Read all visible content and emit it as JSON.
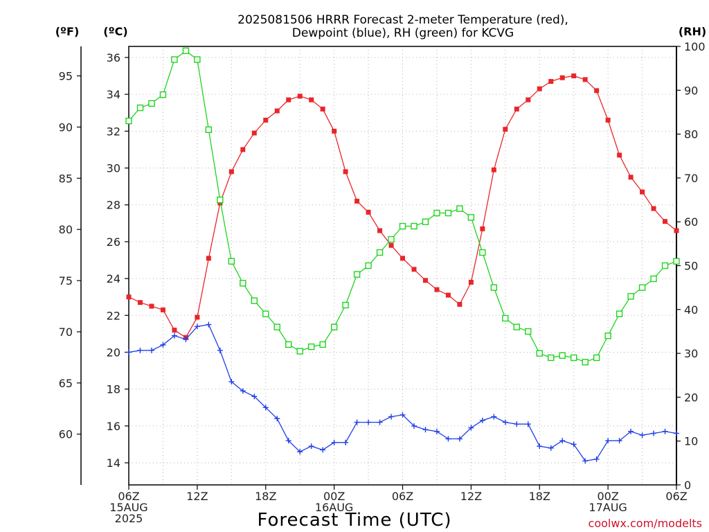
{
  "title_line1": "2025081506 HRRR Forecast 2-meter Temperature (red),",
  "title_line2": "Dewpoint (blue), RH (green) for KCVG",
  "unit_labels": {
    "f": "(ºF)",
    "c": "(ºC)",
    "rh": "(RH)"
  },
  "xlabel": "Forecast Time (UTC)",
  "credit": "coolwx.com/modelts",
  "colors": {
    "temperature": "#e8262a",
    "dewpoint": "#1f3fe6",
    "rh": "#1ed41e",
    "grid": "#b0b0b0"
  },
  "chart_data": {
    "type": "line",
    "x_unit": "forecast hour from 2025-08-15 06Z",
    "x_ticks": [
      {
        "x": 0,
        "lines": [
          "06Z",
          "15AUG",
          "2025"
        ]
      },
      {
        "x": 6,
        "lines": [
          "12Z"
        ]
      },
      {
        "x": 12,
        "lines": [
          "18Z"
        ]
      },
      {
        "x": 18,
        "lines": [
          "00Z",
          "16AUG"
        ]
      },
      {
        "x": 24,
        "lines": [
          "06Z"
        ]
      },
      {
        "x": 30,
        "lines": [
          "12Z"
        ]
      },
      {
        "x": 36,
        "lines": [
          "18Z"
        ]
      },
      {
        "x": 42,
        "lines": [
          "00Z",
          "17AUG"
        ]
      },
      {
        "x": 48,
        "lines": [
          "06Z"
        ]
      }
    ],
    "xlim": [
      0,
      48
    ],
    "y_left_c": {
      "ylim": [
        12.8,
        36.6
      ],
      "ticks": [
        14,
        16,
        18,
        20,
        22,
        24,
        26,
        28,
        30,
        32,
        34,
        36
      ]
    },
    "y_left_f": {
      "ticks": [
        60,
        65,
        70,
        75,
        80,
        85,
        90,
        95
      ]
    },
    "y_right_rh": {
      "ylim": [
        0,
        100
      ],
      "ticks": [
        0,
        10,
        20,
        30,
        40,
        50,
        60,
        70,
        80,
        90,
        100
      ]
    },
    "grid": true,
    "series": [
      {
        "key": "temperature",
        "axis": "c",
        "marker": "filled-square",
        "values": [
          23.0,
          22.7,
          22.5,
          22.3,
          21.2,
          20.8,
          21.9,
          25.1,
          28.1,
          29.8,
          31.0,
          31.9,
          32.6,
          33.1,
          33.7,
          33.9,
          33.7,
          33.2,
          32.0,
          29.8,
          28.2,
          27.6,
          26.6,
          25.8,
          25.1,
          24.5,
          23.9,
          23.4,
          23.1,
          22.6,
          23.8,
          26.7,
          29.9,
          32.1,
          33.2,
          33.7,
          34.3,
          34.7,
          34.9,
          35.0,
          34.8,
          34.2,
          32.6,
          30.7,
          29.5,
          28.7,
          27.8,
          27.1,
          26.6
        ]
      },
      {
        "key": "dewpoint",
        "axis": "c",
        "marker": "plus",
        "values": [
          20.0,
          20.1,
          20.1,
          20.4,
          20.9,
          20.7,
          21.4,
          21.5,
          20.1,
          18.4,
          17.9,
          17.6,
          17.0,
          16.4,
          15.2,
          14.6,
          14.9,
          14.7,
          15.1,
          15.1,
          16.2,
          16.2,
          16.2,
          16.5,
          16.6,
          16.0,
          15.8,
          15.7,
          15.3,
          15.3,
          15.9,
          16.3,
          16.5,
          16.2,
          16.1,
          16.1,
          14.9,
          14.8,
          15.2,
          15.0,
          14.1,
          14.2,
          15.2,
          15.2,
          15.7,
          15.5,
          15.6,
          15.7,
          15.6
        ]
      },
      {
        "key": "rh",
        "axis": "rh",
        "marker": "open-square",
        "values": [
          83,
          86,
          87,
          89,
          97,
          99,
          97,
          81,
          65,
          51,
          46,
          42,
          39,
          36,
          32,
          30.5,
          31.5,
          32,
          36,
          41,
          48,
          50,
          53,
          56,
          59,
          59,
          60,
          62,
          62,
          63,
          61,
          53,
          45,
          38,
          36,
          35,
          30,
          29,
          29.5,
          29,
          28,
          29,
          34,
          39,
          43,
          45,
          47,
          50,
          51
        ]
      }
    ]
  }
}
